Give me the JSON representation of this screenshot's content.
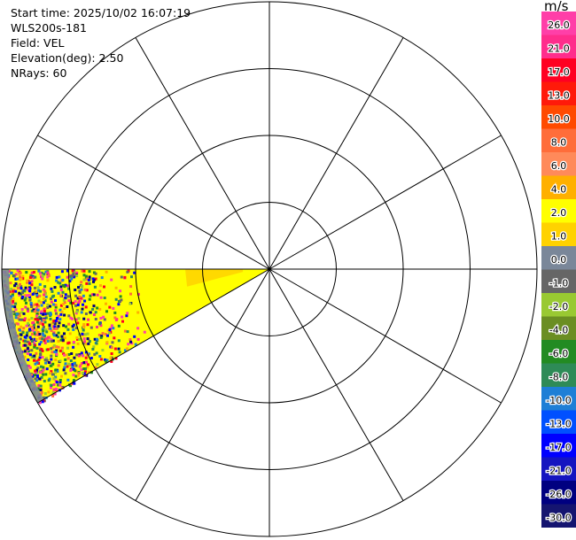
{
  "info": {
    "start_time": "Start time: 2025/10/02 16:07:19",
    "instrument": "WLS200s-181",
    "field": "Field: VEL",
    "elevation": "Elevation(deg): 2.50",
    "nrays": "NRays: 60"
  },
  "colorbar": {
    "units": "m/s",
    "ticks": [
      "26.0",
      "21.0",
      "17.0",
      "13.0",
      "10.0",
      "8.0",
      "6.0",
      "4.0",
      "2.0",
      "1.0",
      "0.0",
      "-1.0",
      "-2.0",
      "-4.0",
      "-6.0",
      "-8.0",
      "-10.0",
      "-13.0",
      "-17.0",
      "-21.0",
      "-26.0",
      "-30.0"
    ],
    "colors": [
      "#ff3fa8",
      "#ff2d8c",
      "#ff0022",
      "#ff1a0a",
      "#ff4a00",
      "#ff6d3a",
      "#ff8a5a",
      "#ffb000",
      "#ffff00",
      "#ffd200",
      "#7a8799",
      "#666666",
      "#99c932",
      "#6b8e23",
      "#228b22",
      "#2e8b57",
      "#1e7fd6",
      "#0050ff",
      "#0000ff",
      "#1515c0",
      "#000080",
      "#151570"
    ]
  },
  "chart_data": {
    "type": "ppi",
    "field": "VEL",
    "units": "m/s",
    "elevation_deg": 2.5,
    "nrays": 60,
    "range_rings": 4,
    "radial_lines_deg": [
      0,
      30,
      60,
      90,
      120,
      150,
      180,
      210,
      240,
      270,
      300,
      330
    ],
    "sector": {
      "azimuth_from_deg": 240,
      "azimuth_to_deg": 270
    },
    "dominant_values_ms": [
      2.0,
      4.0
    ],
    "colorbar_levels": [
      26.0,
      21.0,
      17.0,
      13.0,
      10.0,
      8.0,
      6.0,
      4.0,
      2.0,
      1.0,
      0.0,
      -1.0,
      -2.0,
      -4.0,
      -6.0,
      -8.0,
      -10.0,
      -13.0,
      -17.0,
      -21.0,
      -26.0,
      -30.0
    ]
  }
}
